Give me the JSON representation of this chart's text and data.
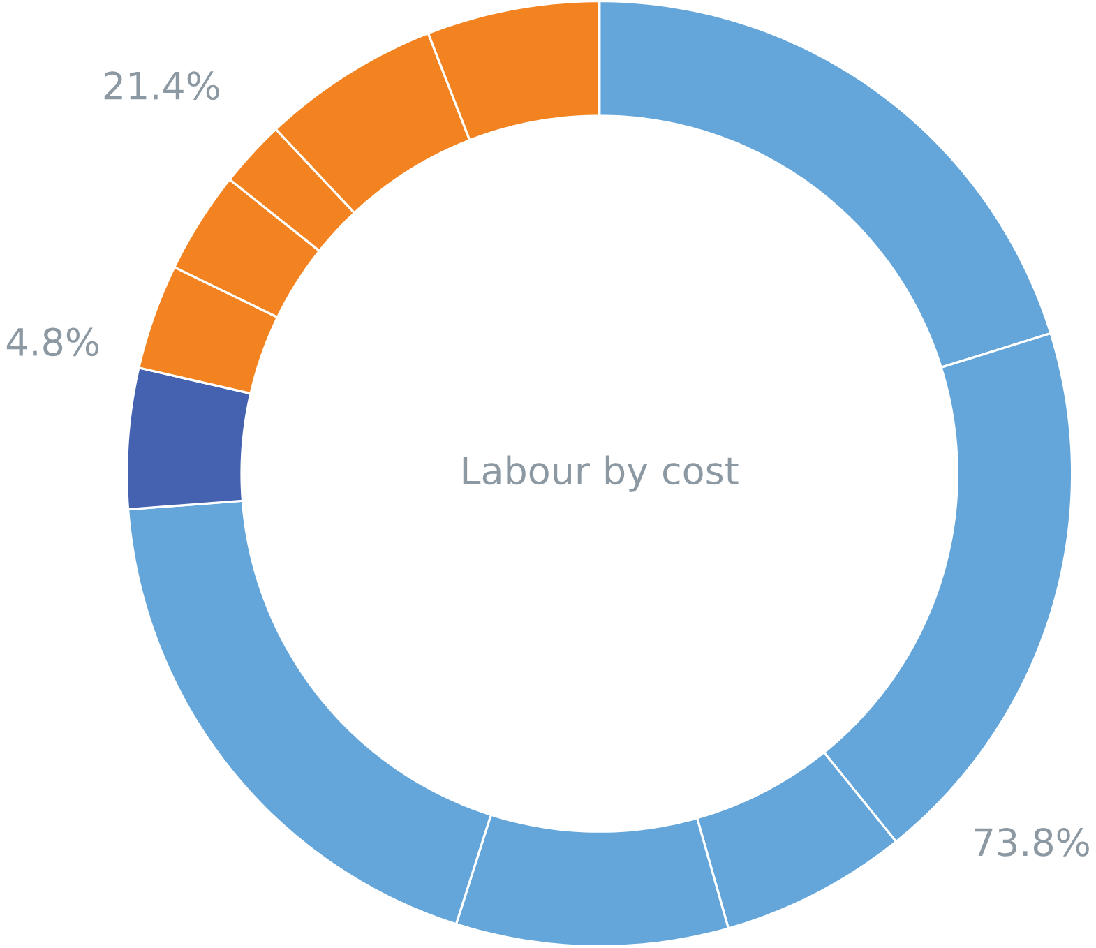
{
  "chart_data": {
    "type": "donut",
    "title": "Labour by cost",
    "categories": [
      null,
      null,
      null,
      null,
      null,
      null,
      null,
      null,
      null,
      null,
      null
    ],
    "values": [
      20.2,
      19.0,
      6.4,
      9.3,
      18.9,
      4.8,
      3.6,
      3.5,
      2.3,
      6.1,
      5.9
    ],
    "colors": [
      "#64a6da",
      "#64a6da",
      "#64a6da",
      "#64a6da",
      "#64a6da",
      "#4462b0",
      "#f38321",
      "#f38321",
      "#f38321",
      "#f38321",
      "#f38321"
    ],
    "value_labels": [
      null,
      null,
      null,
      null,
      null,
      "4.8%",
      null,
      null,
      null,
      null,
      null
    ],
    "annotations": [
      "73.8%",
      "21.4%"
    ]
  }
}
